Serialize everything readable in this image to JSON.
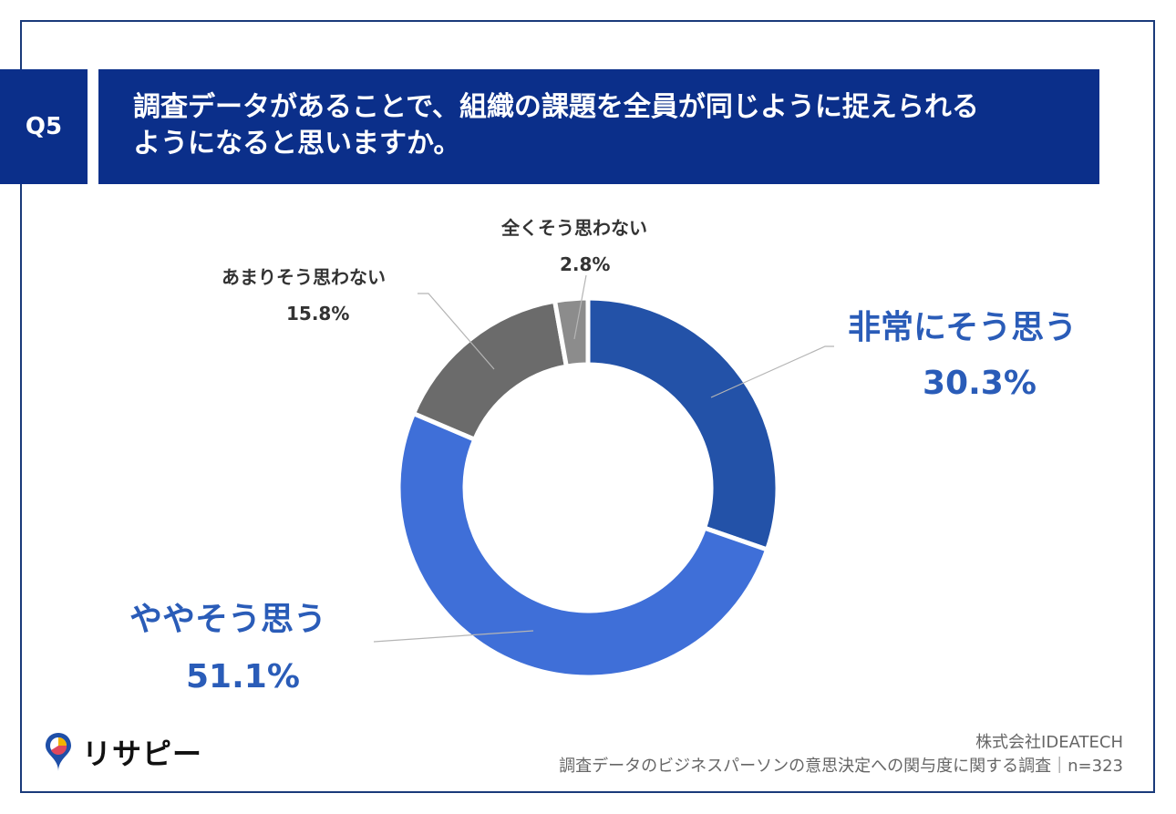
{
  "header": {
    "q_number": "Q5",
    "title_line1": "調査データがあることで、組織の課題を全員が同じように捉えられる",
    "title_line2": "ようになると思いますか。"
  },
  "colors": {
    "header_bg": "#0b2f8a",
    "slice_1": "#2352a8",
    "slice_2": "#3f6fd8",
    "slice_3": "#6b6b6b",
    "slice_4": "#8c8c8c",
    "big_label": "#2a5cb8"
  },
  "chart_data": {
    "type": "pie",
    "donut": true,
    "categories": [
      "非常にそう思う",
      "ややそう思う",
      "あまりそう思わない",
      "全くそう思わない"
    ],
    "values": [
      30.3,
      51.1,
      15.8,
      2.8
    ],
    "value_labels": [
      "30.3%",
      "51.1%",
      "15.8%",
      "2.8%"
    ],
    "legend": "none (labels beside slices)"
  },
  "footer": {
    "logo_text": "リサピー",
    "company": "株式会社IDEATECH",
    "survey": "調査データのビジネスパーソンの意思決定への関与度に関する調査｜n=323"
  }
}
